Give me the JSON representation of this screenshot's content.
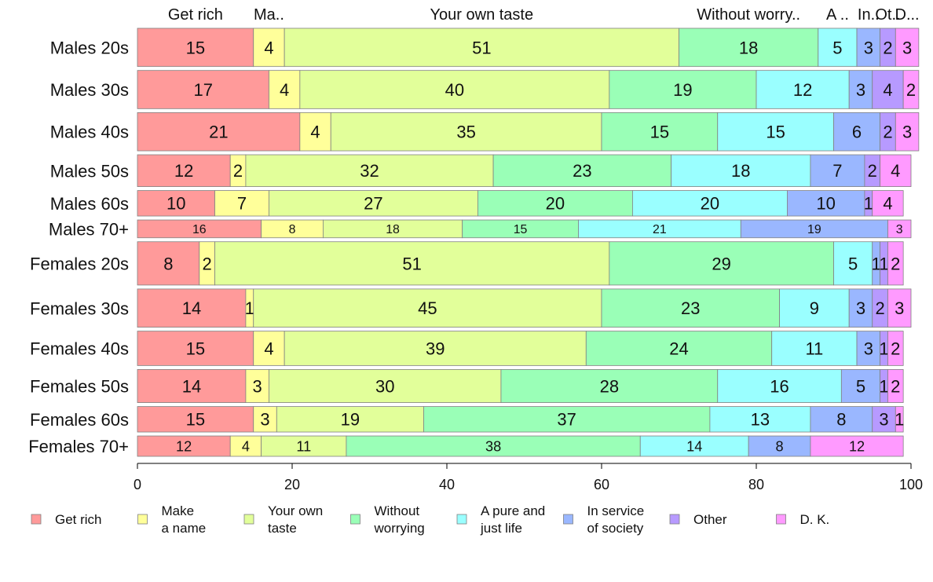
{
  "chart_data": {
    "type": "bar",
    "orientation": "horizontal",
    "stacked": true,
    "categories": [
      "Males 20s",
      "Males 30s",
      "Males 40s",
      "Males 50s",
      "Males 60s",
      "Males 70+",
      "Females 20s",
      "Females 30s",
      "Females 40s",
      "Females 50s",
      "Females 60s",
      "Females 70+"
    ],
    "series": [
      {
        "name": "Get rich",
        "top_label": "Get rich",
        "color": "#ff9a9a",
        "values": [
          15,
          17,
          21,
          12,
          10,
          16,
          8,
          14,
          15,
          14,
          15,
          12
        ]
      },
      {
        "name": "Make a name",
        "legend_lines": [
          "Make",
          "a name"
        ],
        "top_label": "Ma..",
        "color": "#ffff9a",
        "values": [
          4,
          4,
          4,
          2,
          7,
          8,
          2,
          1,
          4,
          3,
          3,
          4
        ]
      },
      {
        "name": "Your own taste",
        "legend_lines": [
          "Your own",
          "taste"
        ],
        "top_label": "Your own taste",
        "color": "#e2ff9a",
        "values": [
          51,
          40,
          35,
          32,
          27,
          18,
          51,
          45,
          39,
          30,
          19,
          11
        ]
      },
      {
        "name": "Without worrying",
        "legend_lines": [
          "Without",
          "worrying"
        ],
        "top_label": "Without worry..",
        "color": "#9affb7",
        "values": [
          18,
          19,
          15,
          23,
          20,
          15,
          29,
          23,
          24,
          28,
          37,
          38
        ]
      },
      {
        "name": "A pure and just life",
        "legend_lines": [
          "A pure and",
          "just life"
        ],
        "top_label": "A ..",
        "color": "#9affff",
        "values": [
          5,
          12,
          15,
          18,
          20,
          21,
          5,
          9,
          11,
          16,
          13,
          14
        ]
      },
      {
        "name": "In service of society",
        "legend_lines": [
          "In service",
          "of society"
        ],
        "top_label": "In..",
        "color": "#9ab7ff",
        "values": [
          3,
          3,
          6,
          7,
          10,
          19,
          1,
          3,
          3,
          5,
          8,
          8
        ]
      },
      {
        "name": "Other",
        "top_label": "Ot..",
        "color": "#b79aff",
        "values": [
          2,
          4,
          2,
          2,
          1,
          0,
          1,
          2,
          1,
          1,
          3,
          0
        ]
      },
      {
        "name": "D. K.",
        "top_label": "D...",
        "color": "#ff9aff",
        "values": [
          3,
          2,
          3,
          4,
          4,
          3,
          2,
          3,
          2,
          2,
          1,
          12
        ]
      }
    ],
    "row_weights": [
      15,
      15,
      15,
      12.5,
      10,
      7,
      17,
      15,
      13.5,
      13,
      10,
      8
    ],
    "xlim": [
      0,
      100
    ],
    "xticks": [
      0,
      20,
      40,
      60,
      80,
      100
    ],
    "xlabel": "",
    "ylabel": "",
    "title": "",
    "grid": false,
    "legend_position": "bottom",
    "legend_layout": "two-line labels"
  }
}
